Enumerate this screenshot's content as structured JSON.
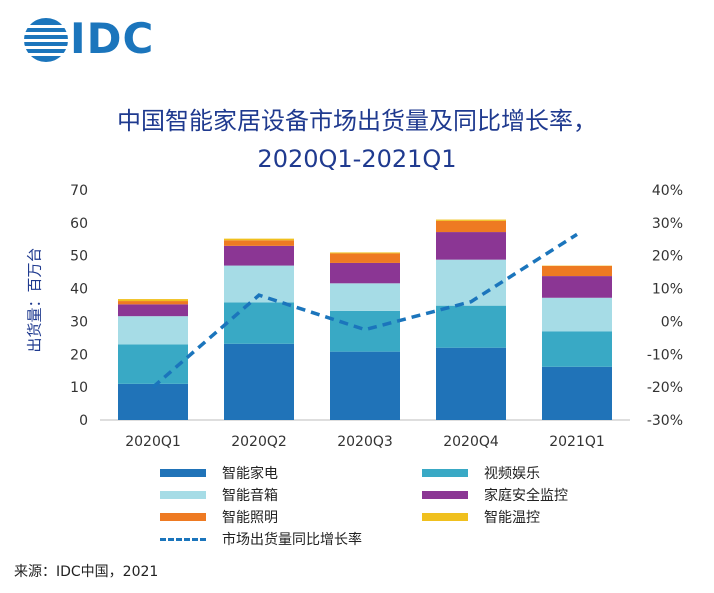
{
  "logo": {
    "text": "IDC",
    "color": "#1b75bc"
  },
  "chart_data": {
    "type": "bar",
    "stacked": true,
    "title": "中国智能家居设备市场出货量及同比增长率，",
    "subtitle": "2020Q1-2021Q1",
    "ylabel": "出货量：百万台",
    "categories": [
      "2020Q1",
      "2020Q2",
      "2020Q3",
      "2020Q4",
      "2021Q1"
    ],
    "ylim": [
      0,
      70
    ],
    "yticks": [
      0,
      10,
      20,
      30,
      40,
      50,
      60,
      70
    ],
    "y2lim": [
      -30,
      40
    ],
    "y2ticks": [
      "-30%",
      "-20%",
      "-10%",
      "0%",
      "10%",
      "20%",
      "30%",
      "40%"
    ],
    "grid": false,
    "legend_position": "bottom",
    "series": [
      {
        "name": "智能家电",
        "color": "#2073b8",
        "values": [
          11,
          23.2,
          20.8,
          22,
          16.2
        ]
      },
      {
        "name": "视频娱乐",
        "color": "#39a9c5",
        "values": [
          12,
          12.6,
          12.4,
          12.8,
          10.8
        ]
      },
      {
        "name": "智能音箱",
        "color": "#a6dce6",
        "values": [
          8.6,
          11.2,
          8.4,
          14,
          10.2
        ]
      },
      {
        "name": "家庭安全监控",
        "color": "#8b3694",
        "values": [
          3.6,
          6,
          6.2,
          8.4,
          6.6
        ]
      },
      {
        "name": "智能照明",
        "color": "#ee7a22",
        "values": [
          1,
          1.7,
          2.9,
          3.4,
          3.1
        ]
      },
      {
        "name": "智能温控",
        "color": "#f0c01e",
        "values": [
          0.6,
          0.5,
          0.3,
          0.4,
          0.1
        ]
      }
    ],
    "line": {
      "name": "市场出货量同比增长率",
      "color": "#1b75bc",
      "axis": "right",
      "values_percent": [
        -20,
        8,
        -2.5,
        6,
        26.5
      ]
    }
  },
  "source": "来源：IDC中国，2021"
}
